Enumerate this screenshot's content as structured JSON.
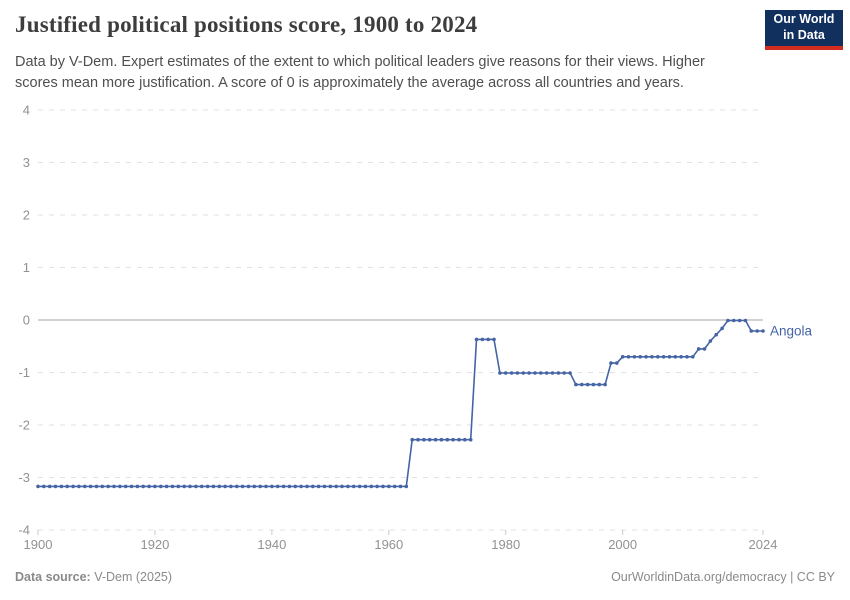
{
  "header": {
    "title": "Justified political positions score, 1900 to 2024",
    "subtitle": "Data by V-Dem. Expert estimates of the extent to which political leaders give reasons for their views. Higher scores mean more justification. A score of 0 is approximately the average across all countries and years.",
    "logo": {
      "line1": "Our World",
      "line2": "in Data",
      "bg_color": "#12305e",
      "accent_color": "#d42b1f"
    }
  },
  "chart_data": {
    "type": "line",
    "title": "Justified political positions score, 1900 to 2024",
    "entity": "Angola",
    "line_color": "#4464a5",
    "grid": "horizontal dashed gridlines, solid zero line",
    "legend_position": "right end-of-line label",
    "x_range": [
      1900,
      2024
    ],
    "y_range": [
      -4,
      4
    ],
    "x_ticks": [
      1900,
      1920,
      1940,
      1960,
      1980,
      2000,
      2024
    ],
    "y_ticks": [
      4,
      3,
      2,
      1,
      0,
      -1,
      -2,
      -3,
      -4
    ],
    "series": [
      {
        "name": "Angola",
        "segments": [
          {
            "from": 1900,
            "to": 1963,
            "value": -3.17
          },
          {
            "from": 1964,
            "to": 1974,
            "value": -2.28
          },
          {
            "from": 1975,
            "to": 1978,
            "value": -0.37
          },
          {
            "from": 1979,
            "to": 1991,
            "value": -1.01
          },
          {
            "from": 1992,
            "to": 1997,
            "value": -1.23
          },
          {
            "from": 1998,
            "to": 1999,
            "value": -0.82
          },
          {
            "from": 2000,
            "to": 2012,
            "value": -0.7
          },
          {
            "from": 2013,
            "to": 2014,
            "value": -0.55
          },
          {
            "from": 2015,
            "to": 2015,
            "value": -0.4
          },
          {
            "from": 2016,
            "to": 2016,
            "value": -0.28
          },
          {
            "from": 2017,
            "to": 2017,
            "value": -0.16
          },
          {
            "from": 2018,
            "to": 2021,
            "value": -0.01
          },
          {
            "from": 2022,
            "to": 2024,
            "value": -0.21
          }
        ],
        "end_label_value": -0.21
      }
    ]
  },
  "footer": {
    "data_source_label": "Data source:",
    "data_source_value": " V-Dem (2025)",
    "url": "OurWorldinData.org/democracy",
    "separator": " | ",
    "license": "CC BY"
  }
}
